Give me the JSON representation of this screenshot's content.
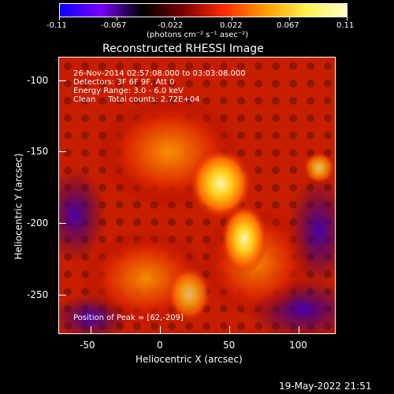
{
  "colorbar": {
    "tick_labels": [
      "-0.11",
      "-0.067",
      "-0.022",
      "0.022",
      "0.067",
      "0.11"
    ],
    "units_text": "(photons cm⁻² s⁻¹ asec⁻²)",
    "colormap": [
      "#0b00ff",
      "#7a00ff",
      "#000000",
      "#7a0000",
      "#ff2a00",
      "#ff9c00",
      "#fff14a",
      "#ffffc8"
    ]
  },
  "title": "Reconstructed RHESSI Image",
  "overlay": {
    "time_range": "26-Nov-2014 02:57:08.000 to 03:03:08.000",
    "detectors": "Detectors: 3F 6F 9F, Att 0",
    "energy_range": "Energy Range: 3.0 - 6.0 keV",
    "method_and_counts": "Clean     Total counts: 2.72E+04",
    "peak_position": "Position of Peak = [62,-209]"
  },
  "axes": {
    "x_label": "Heliocentric X (arcsec)",
    "y_label": "Heliocentric Y (arcsec)",
    "x_tick_labels": [
      "-50",
      "0",
      "50",
      "100"
    ],
    "y_tick_labels": [
      "-100",
      "-150",
      "-200",
      "-250"
    ]
  },
  "footer": {
    "date": "19-May-2022 21:51"
  }
}
